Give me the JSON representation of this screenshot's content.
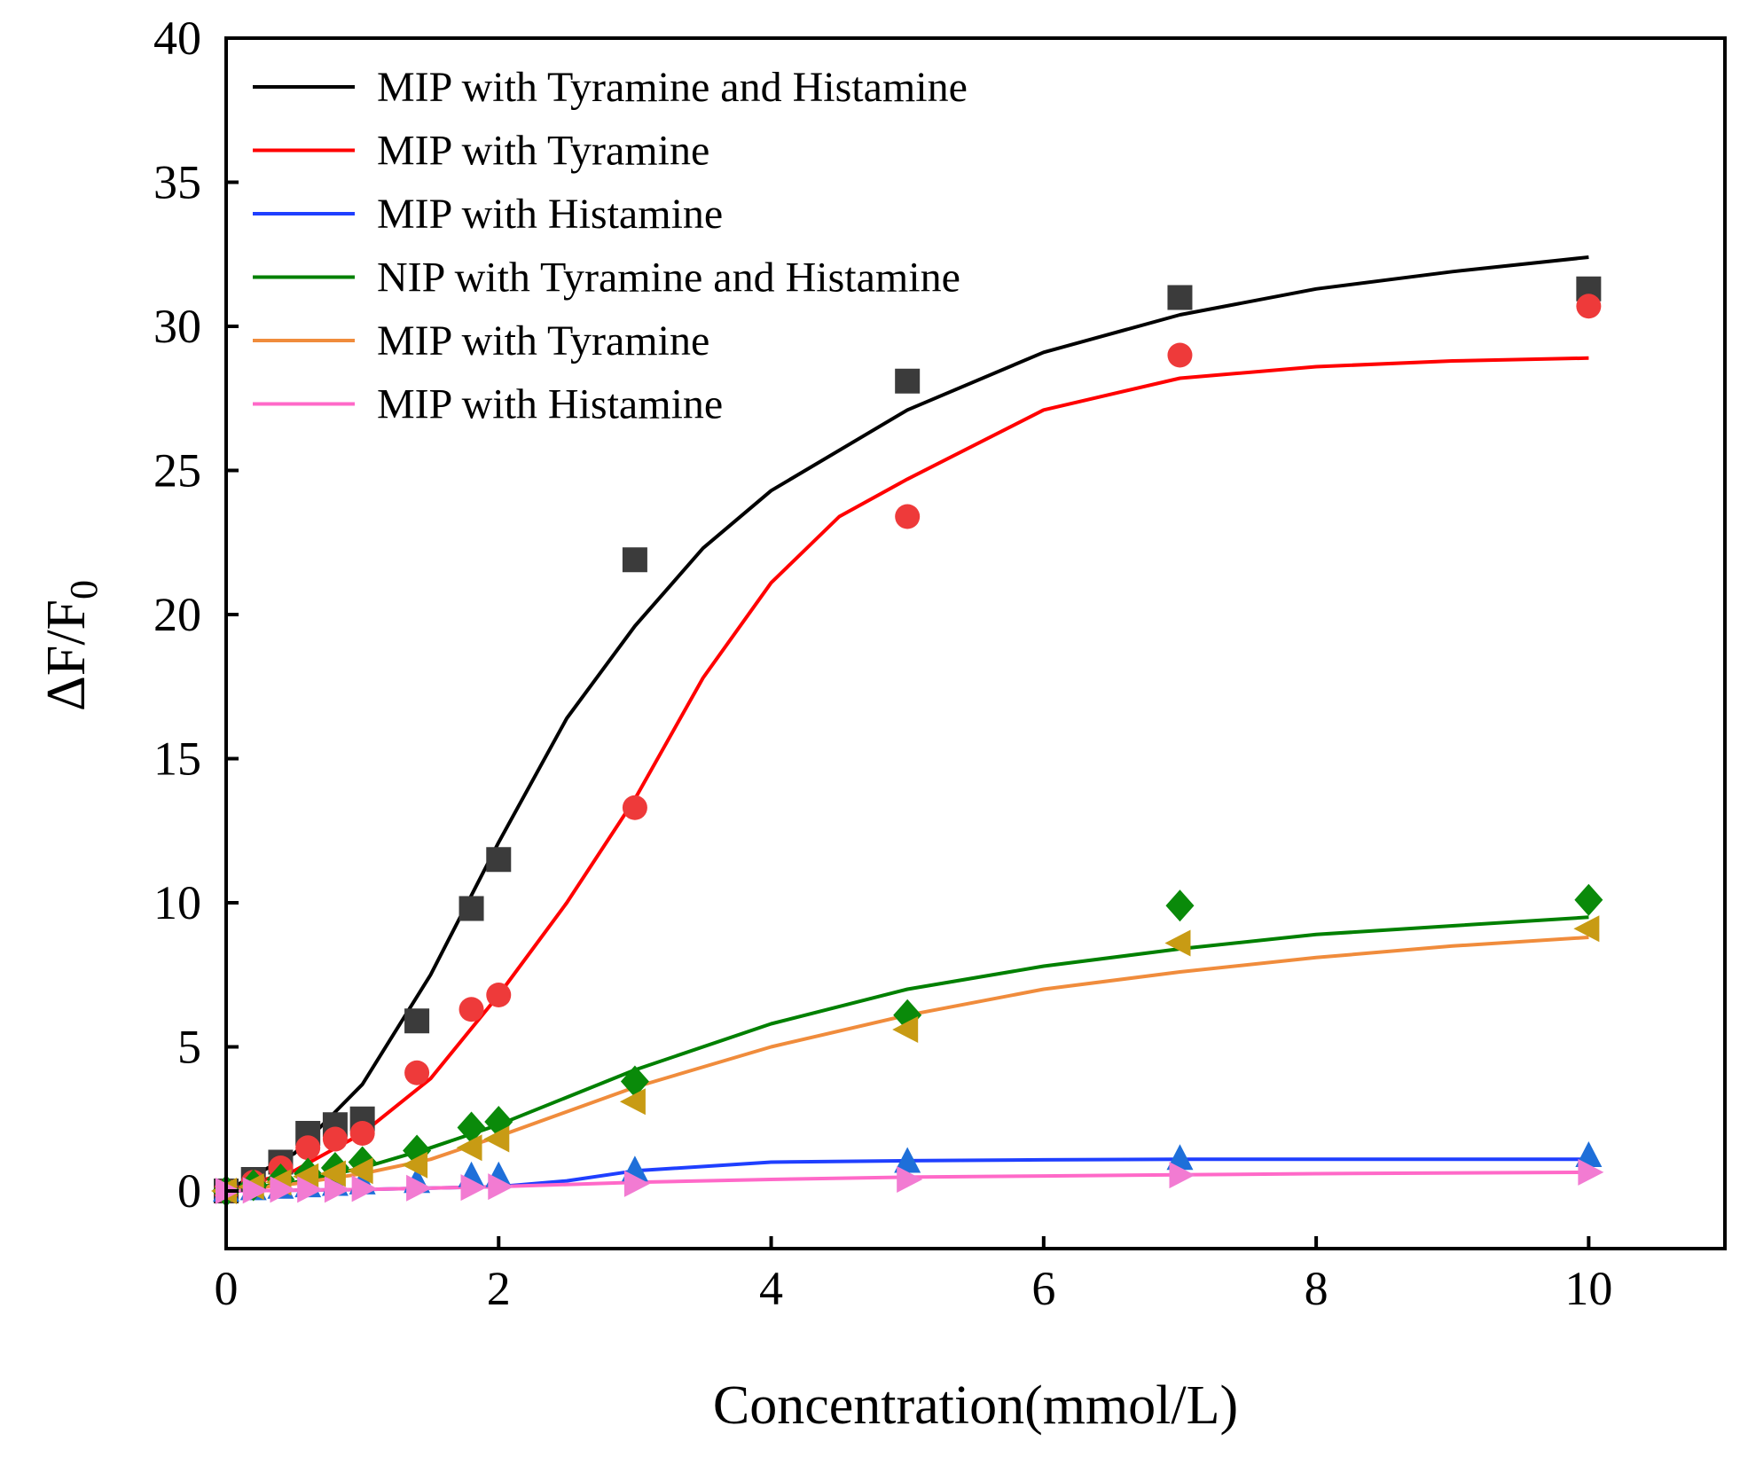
{
  "chart_data": {
    "type": "scatter",
    "title": "",
    "xlabel": "Concentration(mmol/L)",
    "ylabel": "ΔF/F",
    "ylabel_subscript": "0",
    "xlim": [
      0,
      11
    ],
    "ylim": [
      -2,
      40
    ],
    "xticks": [
      0,
      2,
      4,
      6,
      8,
      10
    ],
    "yticks": [
      0,
      5,
      10,
      15,
      20,
      25,
      30,
      35,
      40
    ],
    "grid": false,
    "legend_position": "top-left",
    "series": [
      {
        "name": "MIP with Tyramine and Histamine",
        "line_color": "#000000",
        "marker": "square",
        "marker_color": "#3b3b3b",
        "x": [
          0,
          0.2,
          0.4,
          0.6,
          0.8,
          1,
          1.4,
          1.8,
          2,
          3,
          5,
          7,
          10
        ],
        "y": [
          0,
          0.4,
          1.0,
          2.0,
          2.3,
          2.5,
          5.9,
          9.8,
          11.5,
          21.9,
          28.1,
          31.0,
          31.3
        ],
        "fit": [
          [
            0,
            0
          ],
          [
            0.5,
            1.3
          ],
          [
            1,
            3.7
          ],
          [
            1.5,
            7.5
          ],
          [
            2,
            12.1
          ],
          [
            2.5,
            16.4
          ],
          [
            3,
            19.6
          ],
          [
            3.5,
            22.3
          ],
          [
            4,
            24.3
          ],
          [
            5,
            27.1
          ],
          [
            6,
            29.1
          ],
          [
            7,
            30.4
          ],
          [
            8,
            31.3
          ],
          [
            9,
            31.9
          ],
          [
            10,
            32.4
          ]
        ]
      },
      {
        "name": "MIP with Tyramine",
        "line_color": "#ff0000",
        "marker": "circle",
        "marker_color": "#ee3a3a",
        "x": [
          0,
          0.2,
          0.4,
          0.6,
          0.8,
          1,
          1.4,
          1.8,
          2,
          3,
          5,
          7,
          10
        ],
        "y": [
          0,
          0.3,
          0.8,
          1.5,
          1.8,
          2.0,
          4.1,
          6.3,
          6.8,
          13.3,
          23.4,
          29.0,
          30.7
        ],
        "fit": [
          [
            0,
            0
          ],
          [
            0.5,
            0.7
          ],
          [
            1,
            2.0
          ],
          [
            1.5,
            3.9
          ],
          [
            2,
            6.8
          ],
          [
            2.5,
            10.0
          ],
          [
            3,
            13.6
          ],
          [
            3.5,
            17.8
          ],
          [
            4,
            21.1
          ],
          [
            4.5,
            23.4
          ],
          [
            5,
            24.7
          ],
          [
            6,
            27.1
          ],
          [
            7,
            28.2
          ],
          [
            8,
            28.6
          ],
          [
            9,
            28.8
          ],
          [
            10,
            28.9
          ]
        ]
      },
      {
        "name": "MIP with Histamine",
        "line_color": "#1f3fff",
        "marker": "triangle-up",
        "marker_color": "#1e6fd9",
        "x": [
          0,
          0.2,
          0.4,
          0.6,
          0.8,
          1,
          1.4,
          1.8,
          2,
          3,
          5,
          7,
          10
        ],
        "y": [
          0,
          0.05,
          0.1,
          0.15,
          0.2,
          0.25,
          0.3,
          0.5,
          0.5,
          0.7,
          1.0,
          1.1,
          1.2
        ],
        "fit": [
          [
            0,
            0
          ],
          [
            1,
            0.05
          ],
          [
            2,
            0.15
          ],
          [
            2.5,
            0.35
          ],
          [
            3,
            0.7
          ],
          [
            4,
            1.0
          ],
          [
            5,
            1.05
          ],
          [
            6,
            1.08
          ],
          [
            7,
            1.1
          ],
          [
            8,
            1.1
          ],
          [
            10,
            1.1
          ]
        ]
      },
      {
        "name": "NIP with Tyramine and Histamine",
        "line_color": "#008000",
        "marker": "diamond",
        "marker_color": "#0a8a0a",
        "x": [
          0,
          0.2,
          0.4,
          0.6,
          0.8,
          1,
          1.4,
          1.8,
          2,
          3,
          5,
          7,
          10
        ],
        "y": [
          0,
          0.2,
          0.4,
          0.6,
          0.8,
          1.0,
          1.4,
          2.2,
          2.4,
          3.8,
          6.1,
          9.9,
          10.1
        ],
        "fit": [
          [
            0,
            0
          ],
          [
            0.5,
            0.3
          ],
          [
            1,
            0.8
          ],
          [
            1.5,
            1.5
          ],
          [
            2,
            2.3
          ],
          [
            3,
            4.2
          ],
          [
            4,
            5.8
          ],
          [
            5,
            7.0
          ],
          [
            6,
            7.8
          ],
          [
            7,
            8.4
          ],
          [
            8,
            8.9
          ],
          [
            9,
            9.2
          ],
          [
            10,
            9.5
          ]
        ]
      },
      {
        "name": "MIP with Tyramine",
        "line_color": "#f08c3c",
        "marker": "triangle-left",
        "marker_color": "#c89b14",
        "x": [
          0,
          0.2,
          0.4,
          0.6,
          0.8,
          1,
          1.4,
          1.8,
          2,
          3,
          5,
          7,
          10
        ],
        "y": [
          0,
          0.15,
          0.3,
          0.5,
          0.6,
          0.7,
          0.9,
          1.5,
          1.8,
          3.1,
          5.6,
          8.6,
          9.1
        ],
        "fit": [
          [
            0,
            0
          ],
          [
            0.5,
            0.25
          ],
          [
            1,
            0.6
          ],
          [
            1.5,
            1.1
          ],
          [
            2,
            1.9
          ],
          [
            3,
            3.6
          ],
          [
            4,
            5.0
          ],
          [
            5,
            6.1
          ],
          [
            6,
            7.0
          ],
          [
            7,
            7.6
          ],
          [
            8,
            8.1
          ],
          [
            9,
            8.5
          ],
          [
            10,
            8.8
          ]
        ]
      },
      {
        "name": "MIP with Histamine",
        "line_color": "#ff69c8",
        "marker": "triangle-right",
        "marker_color": "#f27bd2",
        "x": [
          0,
          0.2,
          0.4,
          0.6,
          0.8,
          1,
          1.4,
          1.8,
          2,
          3,
          5,
          7,
          10
        ],
        "y": [
          0,
          0.02,
          0.05,
          0.05,
          0.05,
          0.08,
          0.1,
          0.12,
          0.15,
          0.25,
          0.4,
          0.55,
          0.65
        ],
        "fit": [
          [
            0,
            0
          ],
          [
            1,
            0.05
          ],
          [
            2,
            0.15
          ],
          [
            3,
            0.3
          ],
          [
            4,
            0.4
          ],
          [
            5,
            0.48
          ],
          [
            6,
            0.52
          ],
          [
            7,
            0.56
          ],
          [
            8,
            0.6
          ],
          [
            10,
            0.65
          ]
        ]
      }
    ]
  }
}
